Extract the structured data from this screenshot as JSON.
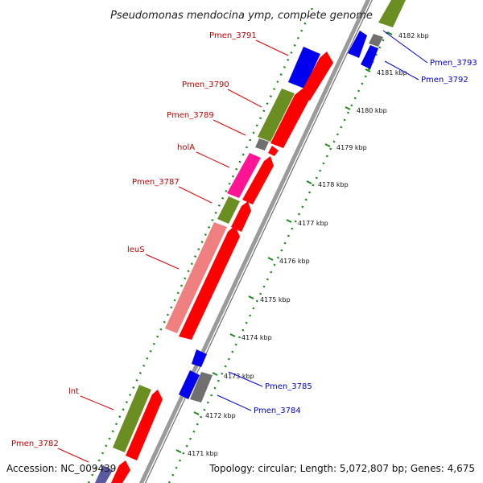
{
  "title": "Pseudomonas mendocina ymp, complete genome",
  "accession": "Accession: NC_009439",
  "topology": "Topology: circular; Length: 5,072,807 bp; Genes: 4,675",
  "colors": {
    "cds": "#ff0000",
    "cds_highlight": "#0000ff",
    "gene": "#6b8e23",
    "gene_highlight": "#0000ff",
    "trna": "#ff1493",
    "repeat": "#f08080",
    "other": "#707070",
    "backbone": "#8c8c8c",
    "ticks_major": "#1b8a1b",
    "label_red": "#c00000",
    "label_blue": "#0000cc"
  },
  "ticks": [
    "4182 kbp",
    "4181 kbp",
    "4180 kbp",
    "4179 kbp",
    "4178 kbp",
    "4177 kbp",
    "4176 kbp",
    "4175 kbp",
    "4174 kbp",
    "4173 kbp",
    "4172 kbp",
    "4171 kbp"
  ],
  "labels_left": [
    {
      "text": "Pmen_3791",
      "color": "red"
    },
    {
      "text": "Pmen_3790",
      "color": "red"
    },
    {
      "text": "Pmen_3789",
      "color": "red"
    },
    {
      "text": "holA",
      "color": "red"
    },
    {
      "text": "Pmen_3787",
      "color": "red"
    },
    {
      "text": "leuS",
      "color": "red"
    },
    {
      "text": "lnt",
      "color": "red"
    },
    {
      "text": "Pmen_3782",
      "color": "red"
    }
  ],
  "labels_right": [
    {
      "text": "Pmen_3793",
      "color": "blue"
    },
    {
      "text": "Pmen_3792",
      "color": "blue"
    },
    {
      "text": "Pmen_3785",
      "color": "blue"
    },
    {
      "text": "Pmen_3784",
      "color": "blue"
    }
  ]
}
